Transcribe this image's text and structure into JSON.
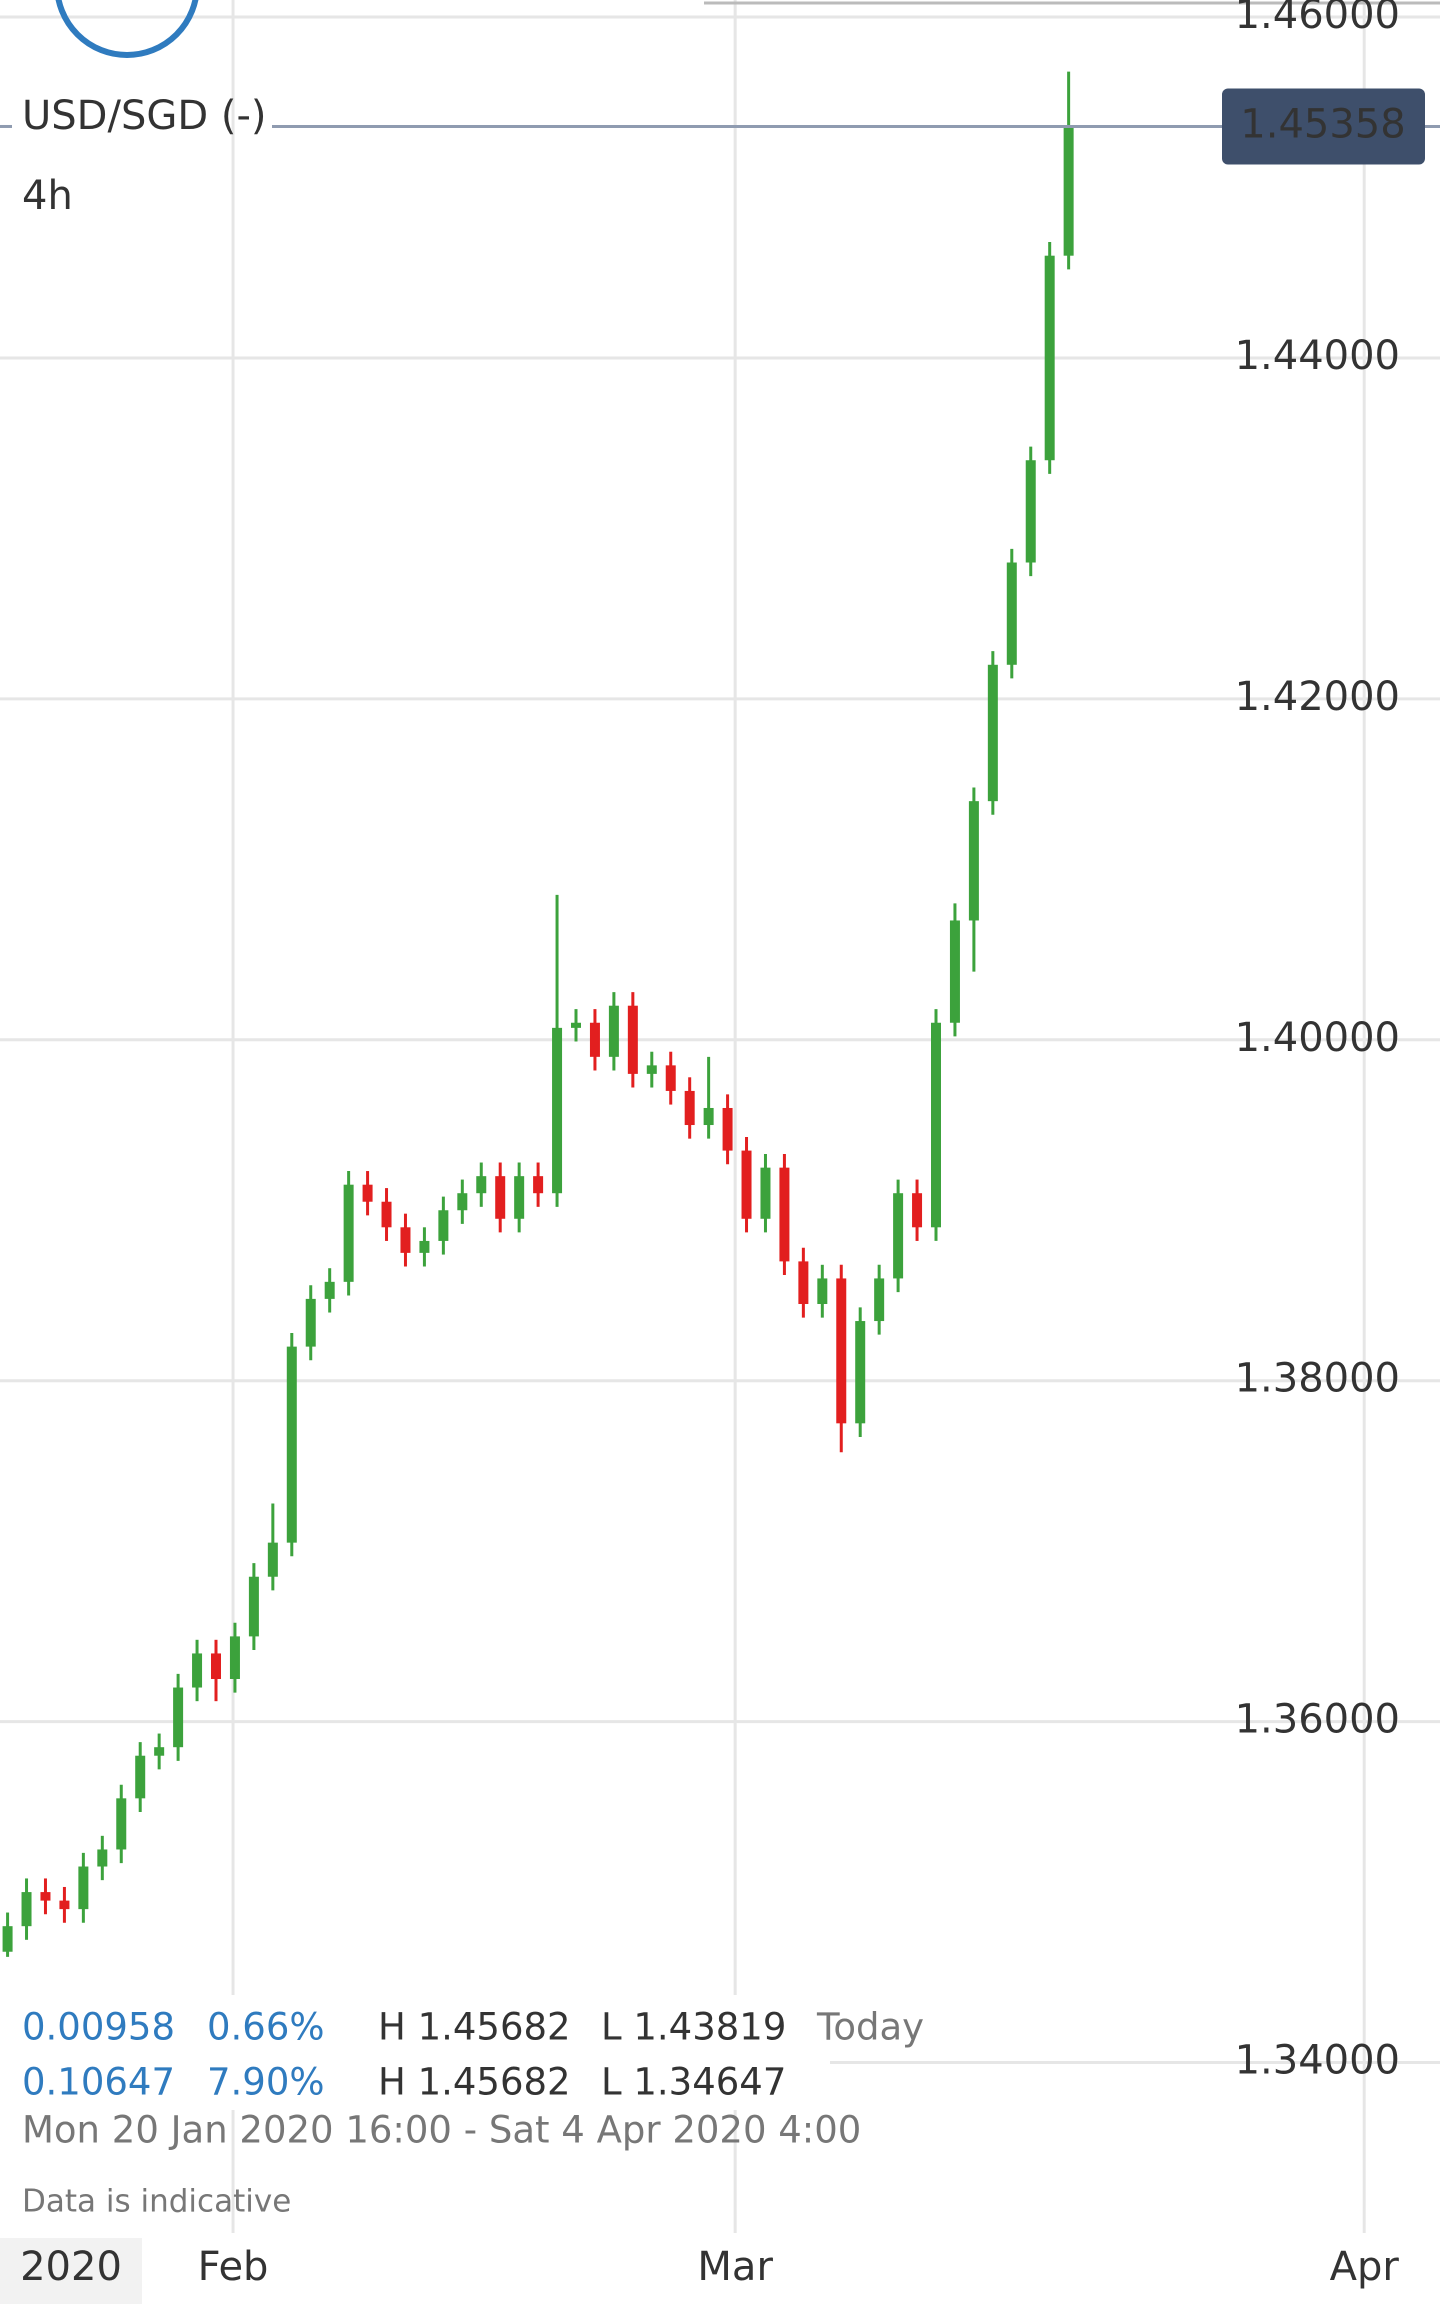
{
  "chart_data": {
    "type": "candlestick",
    "title": "USD/SGD (-)",
    "interval": "4h",
    "x": [
      0,
      1,
      2,
      3,
      4,
      5,
      6,
      7,
      8,
      9,
      10,
      11,
      12,
      13,
      14,
      15,
      16,
      17,
      18,
      19,
      20,
      21,
      22,
      23,
      24,
      25,
      26,
      27,
      28,
      29,
      30,
      31,
      32,
      33,
      34,
      35,
      36,
      37,
      38,
      39,
      40,
      41,
      42,
      43,
      44,
      45,
      46,
      47,
      48,
      49,
      50,
      51,
      52,
      53,
      54,
      55,
      56
    ],
    "open": [
      1.3465,
      1.348,
      1.35,
      1.3495,
      1.349,
      1.3515,
      1.3525,
      1.3555,
      1.358,
      1.3585,
      1.362,
      1.364,
      1.3625,
      1.365,
      1.3685,
      1.3705,
      1.382,
      1.3848,
      1.3858,
      1.3915,
      1.3905,
      1.389,
      1.3875,
      1.3882,
      1.39,
      1.391,
      1.392,
      1.3895,
      1.392,
      1.391,
      1.4007,
      1.401,
      1.399,
      1.402,
      1.398,
      1.3985,
      1.397,
      1.395,
      1.396,
      1.3935,
      1.3895,
      1.3925,
      1.387,
      1.3845,
      1.386,
      1.3775,
      1.3835,
      1.386,
      1.391,
      1.389,
      1.401,
      1.407,
      1.414,
      1.422,
      1.428,
      1.434,
      1.446
    ],
    "high": [
      1.3488,
      1.3508,
      1.3508,
      1.3503,
      1.3523,
      1.3533,
      1.3563,
      1.3588,
      1.3593,
      1.3628,
      1.3648,
      1.3648,
      1.3658,
      1.3693,
      1.3728,
      1.3828,
      1.3856,
      1.3866,
      1.3923,
      1.3923,
      1.3913,
      1.3898,
      1.389,
      1.3908,
      1.3918,
      1.3928,
      1.3928,
      1.3928,
      1.3928,
      1.4085,
      1.4018,
      1.4018,
      1.4028,
      1.4028,
      1.3993,
      1.3993,
      1.3978,
      1.399,
      1.3968,
      1.3943,
      1.3933,
      1.3933,
      1.3878,
      1.3868,
      1.3868,
      1.3843,
      1.3868,
      1.3918,
      1.3918,
      1.4018,
      1.408,
      1.4148,
      1.4228,
      1.4288,
      1.4348,
      1.4468,
      1.4568
    ],
    "low": [
      1.3462,
      1.3472,
      1.3487,
      1.3482,
      1.3482,
      1.3507,
      1.3517,
      1.3547,
      1.3572,
      1.3577,
      1.3612,
      1.3612,
      1.3617,
      1.3642,
      1.3677,
      1.3697,
      1.3812,
      1.384,
      1.385,
      1.3897,
      1.3882,
      1.3867,
      1.3867,
      1.3874,
      1.3892,
      1.3902,
      1.3887,
      1.3887,
      1.3902,
      1.3902,
      1.3999,
      1.3982,
      1.3982,
      1.3972,
      1.3972,
      1.3962,
      1.3942,
      1.3942,
      1.3927,
      1.3887,
      1.3887,
      1.3862,
      1.3837,
      1.3837,
      1.3758,
      1.3767,
      1.3827,
      1.3852,
      1.3882,
      1.3882,
      1.4002,
      1.404,
      1.4132,
      1.4212,
      1.4272,
      1.4332,
      1.4452
    ],
    "close": [
      1.348,
      1.35,
      1.3495,
      1.349,
      1.3515,
      1.3525,
      1.3555,
      1.358,
      1.3585,
      1.362,
      1.364,
      1.3625,
      1.365,
      1.3685,
      1.3705,
      1.382,
      1.3848,
      1.3858,
      1.3915,
      1.3905,
      1.389,
      1.3875,
      1.3882,
      1.39,
      1.391,
      1.392,
      1.3895,
      1.392,
      1.391,
      1.4007,
      1.401,
      1.399,
      1.402,
      1.398,
      1.3985,
      1.397,
      1.395,
      1.396,
      1.3935,
      1.3895,
      1.3925,
      1.387,
      1.3845,
      1.386,
      1.3775,
      1.3835,
      1.386,
      1.391,
      1.389,
      1.401,
      1.407,
      1.414,
      1.422,
      1.428,
      1.434,
      1.446,
      1.4536
    ],
    "up_color": "#3ca23c",
    "down_color": "#e21f1f",
    "xlim": [
      -0.4,
      75.6
    ],
    "xticks": [
      {
        "value": 11.9,
        "label": "Feb"
      },
      {
        "value": 38.4,
        "label": "Mar"
      },
      {
        "value": 71.6,
        "label": "Apr"
      }
    ],
    "x_year_label": "2020",
    "ylim": [
      1.33,
      1.461
    ],
    "yticks": [
      {
        "value": 1.34,
        "label": "1.34000"
      },
      {
        "value": 1.36,
        "label": "1.36000"
      },
      {
        "value": 1.38,
        "label": "1.38000"
      },
      {
        "value": 1.4,
        "label": "1.40000"
      },
      {
        "value": 1.42,
        "label": "1.42000"
      },
      {
        "value": 1.44,
        "label": "1.44000"
      },
      {
        "value": 1.46,
        "label": "1.46000"
      }
    ],
    "grid": true,
    "last_price": 1.45358
  },
  "stats": {
    "rows": [
      {
        "change": "0.00958",
        "percent": "0.66%",
        "high": "H 1.45682",
        "low": "L 1.43819",
        "period": "Today"
      },
      {
        "change": "0.10647",
        "percent": "7.90%",
        "high": "H 1.45682",
        "low": "L 1.34647"
      }
    ],
    "date_range": "Mon 20 Jan 2020 16:00 - Sat 4 Apr 2020 4:00",
    "note": "Data is indicative"
  }
}
